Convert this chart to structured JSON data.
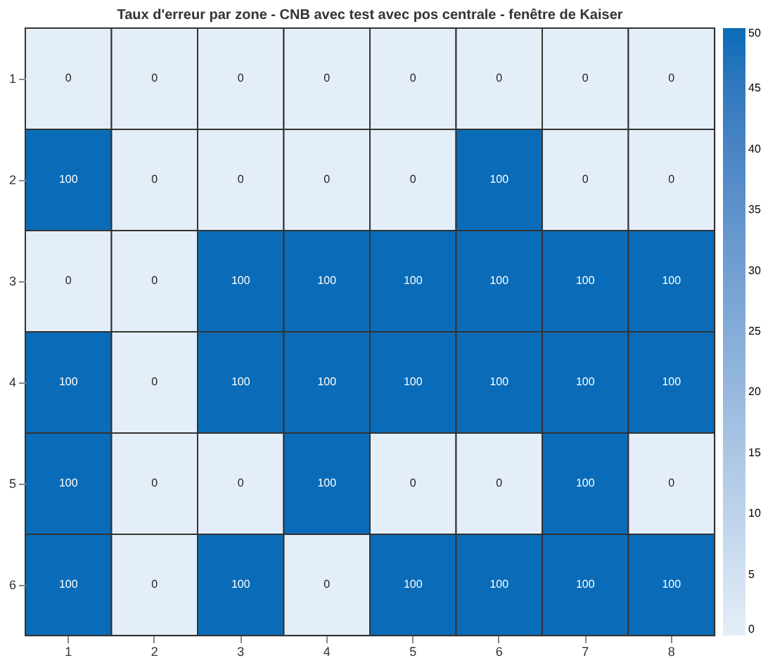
{
  "chart_data": {
    "type": "heatmap",
    "title": "Taux d'erreur par zone - CNB avec test avec pos centrale - fenêtre de Kaiser",
    "categories": [
      "1",
      "2",
      "3",
      "4",
      "5",
      "6",
      "7",
      "8"
    ],
    "y_categories": [
      "1",
      "2",
      "3",
      "4",
      "5",
      "6"
    ],
    "cells": [
      [
        0,
        0,
        0,
        0,
        0,
        0,
        0,
        0
      ],
      [
        100,
        0,
        0,
        0,
        0,
        100,
        0,
        0
      ],
      [
        0,
        0,
        100,
        100,
        100,
        100,
        100,
        100
      ],
      [
        100,
        0,
        100,
        100,
        100,
        100,
        100,
        100
      ],
      [
        100,
        0,
        0,
        100,
        0,
        0,
        100,
        0
      ],
      [
        100,
        0,
        100,
        0,
        100,
        100,
        100,
        100
      ]
    ],
    "data_labels": true,
    "clim": [
      0,
      50
    ],
    "cticks": [
      0,
      5,
      10,
      15,
      20,
      25,
      30,
      35,
      40,
      45,
      50
    ]
  }
}
